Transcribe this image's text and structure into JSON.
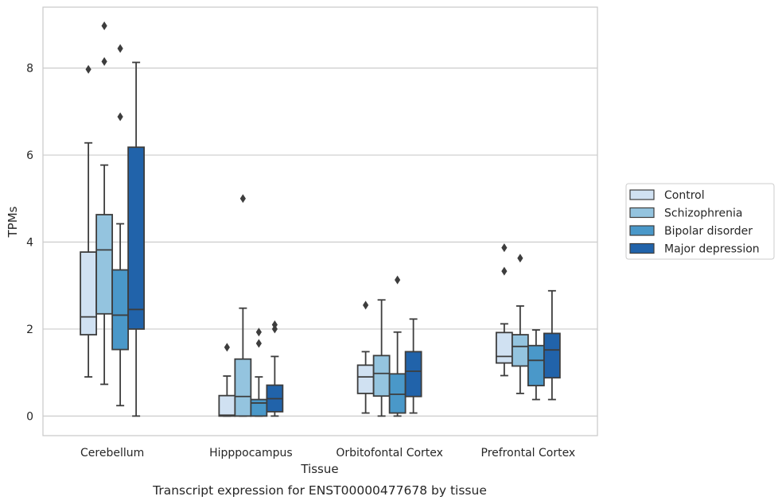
{
  "chart_data": {
    "type": "box",
    "title": "",
    "caption": "Transcript expression for ENST00000477678 by tissue",
    "xlabel": "Tissue",
    "ylabel": "TPMs",
    "ylim": [
      -0.45,
      9.4
    ],
    "yticks": [
      0,
      2,
      4,
      6,
      8
    ],
    "grid": "horizontal",
    "legend_position": "right",
    "categories": [
      "Cerebellum",
      "Hipppocampus",
      "Orbitofontal Cortex",
      "Prefrontal Cortex"
    ],
    "series": [
      {
        "name": "Control",
        "color": "#d0e1f2",
        "boxes": [
          {
            "whislo": 0.9,
            "q1": 1.87,
            "med": 2.28,
            "q3": 3.77,
            "whishi": 6.28,
            "fliers": [
              7.97
            ]
          },
          {
            "whislo": 0.0,
            "q1": 0.0,
            "med": 0.02,
            "q3": 0.47,
            "whishi": 0.92,
            "fliers": [
              1.58
            ]
          },
          {
            "whislo": 0.07,
            "q1": 0.52,
            "med": 0.9,
            "q3": 1.17,
            "whishi": 1.48,
            "fliers": [
              2.55
            ]
          },
          {
            "whislo": 0.93,
            "q1": 1.22,
            "med": 1.37,
            "q3": 1.92,
            "whishi": 2.12,
            "fliers": [
              3.33,
              3.87
            ]
          }
        ]
      },
      {
        "name": "Schizophrenia",
        "color": "#94c4df",
        "boxes": [
          {
            "whislo": 0.73,
            "q1": 2.35,
            "med": 3.82,
            "q3": 4.63,
            "whishi": 5.77,
            "fliers": [
              8.15,
              8.97
            ]
          },
          {
            "whislo": 0.0,
            "q1": 0.0,
            "med": 0.45,
            "q3": 1.31,
            "whishi": 2.48,
            "fliers": [
              5.0
            ]
          },
          {
            "whislo": 0.0,
            "q1": 0.46,
            "med": 0.98,
            "q3": 1.39,
            "whishi": 2.67,
            "fliers": []
          },
          {
            "whislo": 0.52,
            "q1": 1.15,
            "med": 1.6,
            "q3": 1.87,
            "whishi": 2.53,
            "fliers": [
              3.63
            ]
          }
        ]
      },
      {
        "name": "Bipolar disorder",
        "color": "#4a98c9",
        "boxes": [
          {
            "whislo": 0.24,
            "q1": 1.53,
            "med": 2.32,
            "q3": 3.36,
            "whishi": 4.42,
            "fliers": [
              6.88,
              8.45
            ]
          },
          {
            "whislo": 0.0,
            "q1": 0.0,
            "med": 0.3,
            "q3": 0.38,
            "whishi": 0.9,
            "fliers": [
              1.67,
              1.93
            ]
          },
          {
            "whislo": 0.0,
            "q1": 0.07,
            "med": 0.5,
            "q3": 0.97,
            "whishi": 1.93,
            "fliers": [
              3.13
            ]
          },
          {
            "whislo": 0.38,
            "q1": 0.7,
            "med": 1.28,
            "q3": 1.62,
            "whishi": 1.98,
            "fliers": []
          }
        ]
      },
      {
        "name": "Major depression",
        "color": "#2163aa",
        "boxes": [
          {
            "whislo": 0.0,
            "q1": 2.0,
            "med": 2.45,
            "q3": 6.18,
            "whishi": 8.13,
            "fliers": []
          },
          {
            "whislo": 0.0,
            "q1": 0.1,
            "med": 0.4,
            "q3": 0.71,
            "whishi": 1.37,
            "fliers": [
              2.0,
              2.1
            ]
          },
          {
            "whislo": 0.07,
            "q1": 0.45,
            "med": 1.03,
            "q3": 1.48,
            "whishi": 2.23,
            "fliers": []
          },
          {
            "whislo": 0.38,
            "q1": 0.88,
            "med": 1.52,
            "q3": 1.9,
            "whishi": 2.88,
            "fliers": []
          }
        ]
      }
    ]
  }
}
